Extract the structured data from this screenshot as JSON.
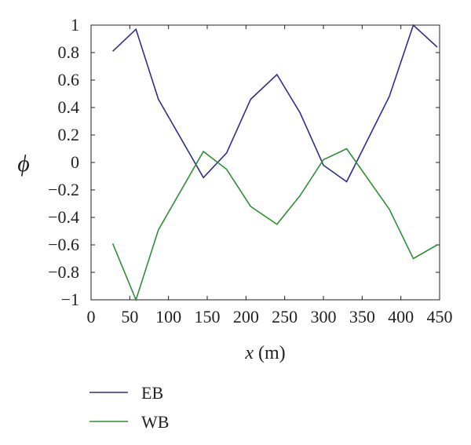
{
  "chart_data": {
    "type": "line",
    "xlabel_var": "x",
    "xlabel_unit": " (m)",
    "ylabel": "ϕ",
    "xlim": [
      0,
      450
    ],
    "ylim": [
      -1,
      1
    ],
    "xticks": [
      0,
      50,
      100,
      150,
      200,
      250,
      300,
      350,
      400,
      450
    ],
    "yticks": [
      1,
      0.8,
      0.6,
      0.4,
      0.2,
      0,
      -0.2,
      -0.4,
      -0.6,
      -0.8,
      -1
    ],
    "ytick_labels": [
      "1",
      "0.8",
      "0.6",
      "0.4",
      "0.2",
      "0",
      "−0.2",
      "−0.4",
      "−0.6",
      "−0.8",
      "−1"
    ],
    "grid": false,
    "legend_position": "bottom-left, below plot",
    "series": [
      {
        "name": "EB",
        "color": "#2e2e8f",
        "x": [
          28,
          58,
          87,
          145,
          175,
          206,
          240,
          270,
          300,
          330,
          385,
          416,
          447
        ],
        "y": [
          0.81,
          0.97,
          0.46,
          -0.11,
          0.07,
          0.46,
          0.64,
          0.36,
          -0.02,
          -0.14,
          0.48,
          1.0,
          0.84
        ]
      },
      {
        "name": "WB",
        "color": "#2e8f36",
        "x": [
          28,
          58,
          87,
          145,
          175,
          206,
          240,
          270,
          300,
          330,
          385,
          416,
          447
        ],
        "y": [
          -0.59,
          -1.0,
          -0.49,
          0.08,
          -0.05,
          -0.32,
          -0.45,
          -0.24,
          0.02,
          0.1,
          -0.34,
          -0.7,
          -0.6
        ]
      }
    ]
  }
}
